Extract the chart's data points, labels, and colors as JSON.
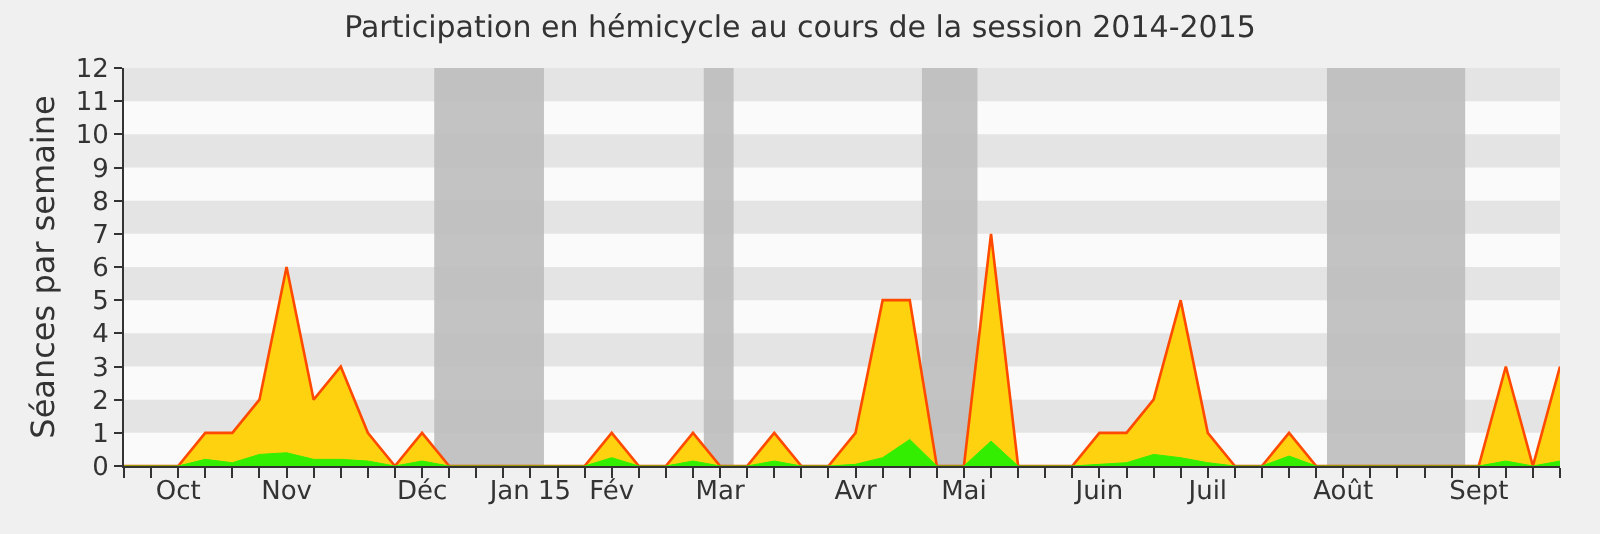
{
  "chart_data": {
    "type": "area",
    "title": "Participation en hémicycle au cours de la session 2014-2015",
    "ylabel": "Séances par semaine",
    "categories": [
      null,
      null,
      "Oct",
      null,
      null,
      null,
      "Nov",
      null,
      null,
      null,
      null,
      "Déc",
      null,
      null,
      null,
      "Jan 15",
      null,
      null,
      "Fév",
      null,
      null,
      null,
      "Mar",
      null,
      null,
      null,
      null,
      "Avr",
      null,
      null,
      null,
      "Mai",
      null,
      null,
      null,
      null,
      "Juin",
      null,
      null,
      null,
      "Juil",
      null,
      null,
      null,
      null,
      "Août",
      null,
      null,
      null,
      null,
      "Sept",
      null,
      null,
      null
    ],
    "series": [
      {
        "color": "#ffd20f",
        "values": [
          0,
          0,
          0,
          1,
          1,
          2,
          6,
          2,
          3,
          1,
          0,
          1,
          0,
          0,
          0,
          0,
          0,
          0,
          1,
          0,
          0,
          1,
          0,
          0,
          1,
          0,
          0,
          1,
          5,
          5,
          0,
          0,
          7,
          0,
          0,
          0,
          1,
          1,
          2,
          5,
          1,
          0,
          0,
          1,
          0,
          0,
          0,
          0,
          0,
          0,
          0,
          3,
          0,
          3
        ]
      },
      {
        "color": "#33ee00",
        "values": [
          0,
          0,
          0,
          0.2,
          0.1,
          0.35,
          0.4,
          0.2,
          0.2,
          0.15,
          0,
          0.15,
          0,
          0,
          0,
          0,
          0,
          0,
          0.25,
          0,
          0,
          0.15,
          0,
          0,
          0.15,
          0,
          0,
          0.05,
          0.25,
          0.8,
          0,
          0,
          0.75,
          0,
          0,
          0,
          0.05,
          0.1,
          0.35,
          0.25,
          0.1,
          0,
          0,
          0.3,
          0,
          0,
          0,
          0,
          0,
          0,
          0,
          0.15,
          0,
          0.15
        ]
      }
    ],
    "ylim": [
      0,
      12
    ],
    "yticks": [
      0,
      1,
      2,
      3,
      4,
      5,
      6,
      7,
      8,
      9,
      10,
      11,
      12
    ]
  }
}
